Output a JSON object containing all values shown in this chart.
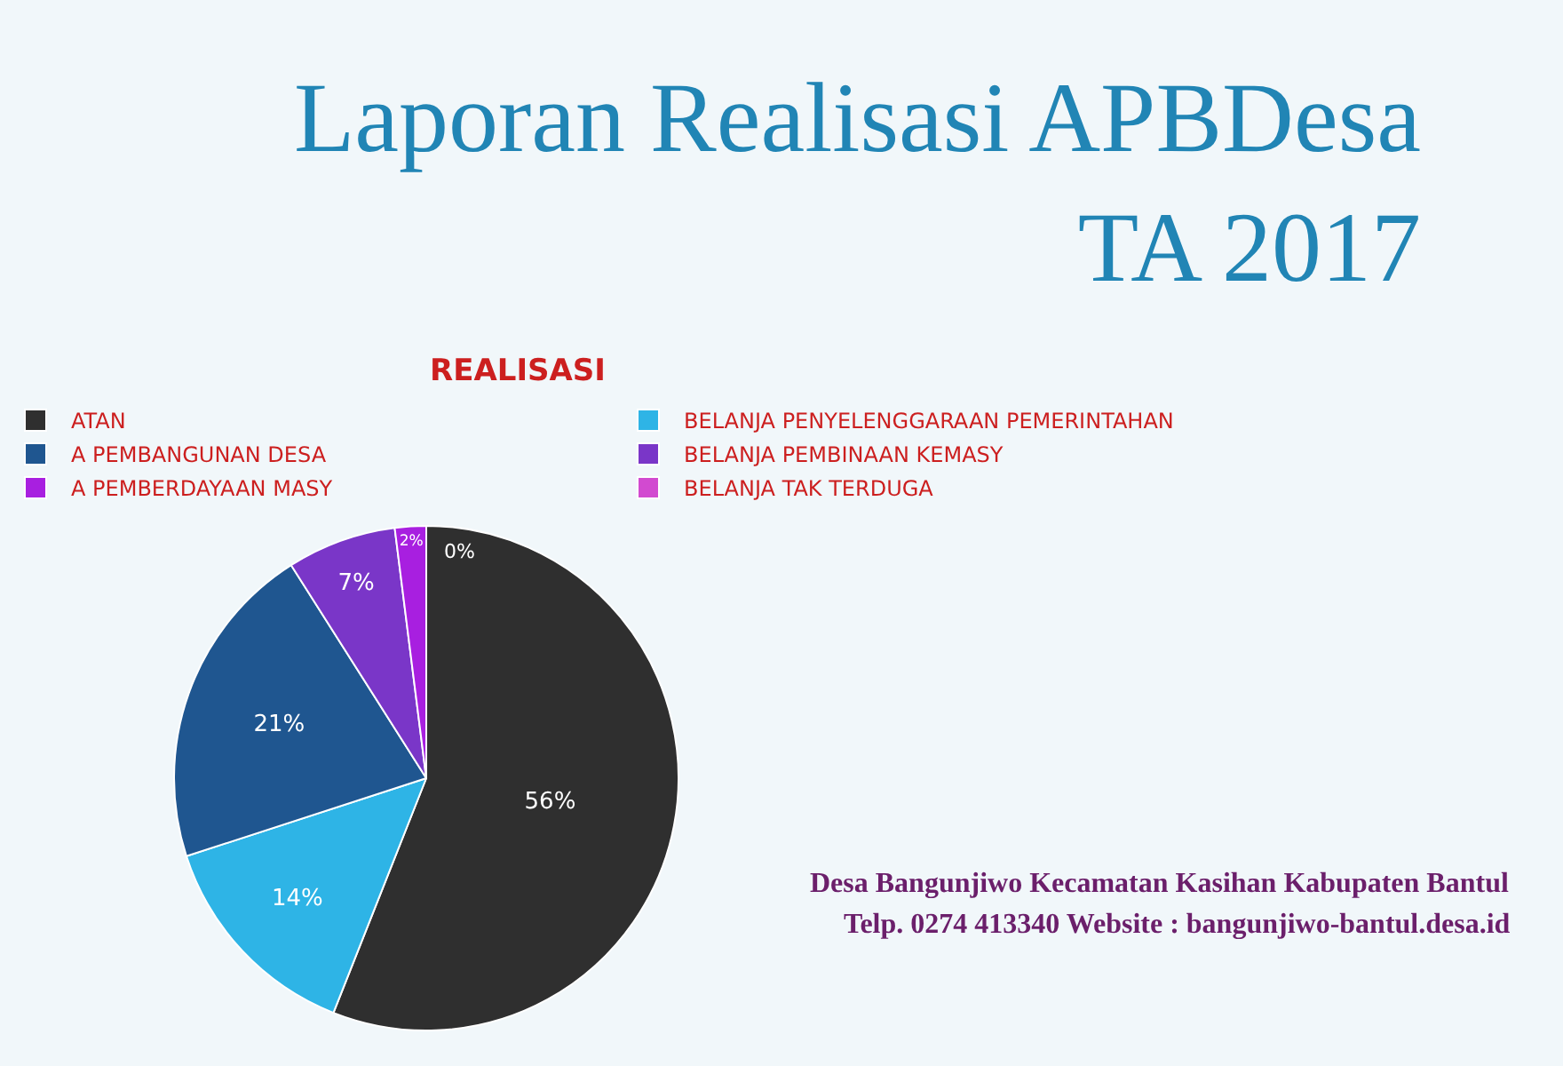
{
  "chart_data": {
    "type": "pie",
    "title": "Laporan Realisasi APBDesa\nTA 2017",
    "subtitle": "REALISASI",
    "categories": [
      "ATAN",
      "BELANJA PENYELENGGARAAN PEMERINTAHAN",
      "A PEMBANGUNAN DESA",
      "BELANJA PEMBINAAN KEMASY",
      "A PEMBERDAYAAN MASY",
      "BELANJA TAK TERDUGA"
    ],
    "values": [
      56,
      14,
      21,
      7,
      2,
      0
    ],
    "value_labels": [
      "56%",
      "14%",
      "21%",
      "7%",
      "2%",
      "0%"
    ],
    "colors": [
      "#2f2f2f",
      "#2eb4e6",
      "#1f5690",
      "#7a36c8",
      "#a81fe0",
      "#d24ad0"
    ],
    "legend": "top",
    "annotations": [
      "Desa Bangunjiwo Kecamatan Kasihan Kabupaten Bantul",
      "Telp. 0274 413340 Website : bangunjiwo-bantul.desa.id"
    ]
  }
}
